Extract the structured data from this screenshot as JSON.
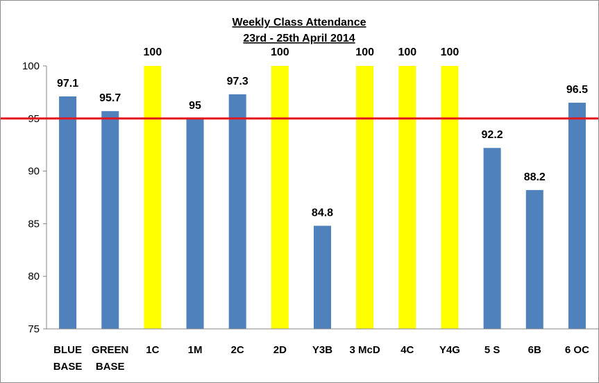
{
  "chart_data": {
    "type": "bar",
    "title": "Weekly Class Attendance",
    "subtitle": "23rd - 25th April 2014",
    "xlabel": "",
    "ylabel": "",
    "ylim": [
      75,
      100
    ],
    "yticks": [
      75,
      80,
      85,
      90,
      95,
      100
    ],
    "grid": false,
    "legend": "none",
    "categories": [
      [
        "BLUE",
        "BASE"
      ],
      [
        "GREEN",
        "BASE"
      ],
      [
        "1C"
      ],
      [
        "1M"
      ],
      [
        "2C"
      ],
      [
        "2D"
      ],
      [
        "Y3B"
      ],
      [
        "3 McD"
      ],
      [
        "4C"
      ],
      [
        "Y4G"
      ],
      [
        "5 S"
      ],
      [
        "6B"
      ],
      [
        "6 OC"
      ]
    ],
    "values": [
      97.1,
      95.7,
      100,
      95,
      97.3,
      100,
      84.8,
      100,
      100,
      100,
      92.2,
      88.2,
      96.5
    ],
    "data_labels": [
      "97.1",
      "95.7",
      "100",
      "95",
      "97.3",
      "100",
      "84.8",
      "100",
      "100",
      "100",
      "92.2",
      "88.2",
      "96.5"
    ],
    "bar_colors": [
      "#4f81bd",
      "#4f81bd",
      "#ffff00",
      "#4f81bd",
      "#4f81bd",
      "#ffff00",
      "#4f81bd",
      "#ffff00",
      "#ffff00",
      "#ffff00",
      "#4f81bd",
      "#4f81bd",
      "#4f81bd"
    ],
    "target_line": {
      "value": 95,
      "color": "#e3161b"
    },
    "axis_color": "#868686"
  }
}
